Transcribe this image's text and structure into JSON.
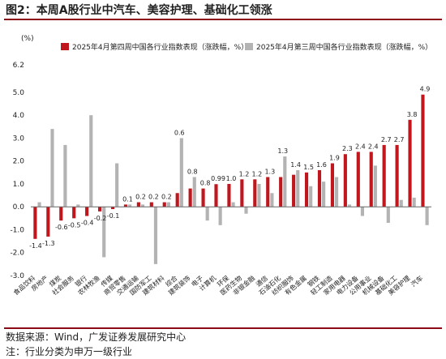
{
  "title": "图2：本周A股行业中汽车、美容护理、基础化工领涨",
  "source_note": "数据来源：Wind，广发证券发展研究中心",
  "footnote": "注：行业分类为申万一级行业",
  "colors": {
    "rule": "#8b0a16",
    "series1": "#c0161e",
    "series2": "#b3b3b3"
  },
  "chart_data": {
    "type": "bar",
    "unit_label": "(%)",
    "ylim": [
      -3.0,
      6.2
    ],
    "yticks": [
      "6.2",
      "5.0",
      "4.0",
      "3.0",
      "2.0",
      "1.0",
      "0.0",
      "-1.0",
      "-2.0",
      "-3.0"
    ],
    "ytick_values": [
      6.2,
      5.0,
      4.0,
      3.0,
      2.0,
      1.0,
      0.0,
      -1.0,
      -2.0,
      -3.0
    ],
    "grid": false,
    "legend_position": "top",
    "categories": [
      "食品饮料",
      "房地产",
      "煤炭",
      "社会服务",
      "银行",
      "农林牧渔",
      "传媒",
      "商贸零售",
      "交通运输",
      "国防军工",
      "建筑材料",
      "综合",
      "建筑装饰",
      "电子",
      "计算机",
      "环保",
      "医药生物",
      "非银金融",
      "通信",
      "石油石化",
      "纺织服饰",
      "有色金属",
      "钢铁",
      "轻工制造",
      "家用电器",
      "电力设备",
      "公用事业",
      "机械设备",
      "基础化工",
      "美容护理",
      "汽车"
    ],
    "series": [
      {
        "name": "2025年4月第四周中国各行业指数表现（涨跌幅，%）",
        "values": [
          -1.4,
          -1.3,
          -0.6,
          -0.5,
          -0.4,
          -0.2,
          -0.1,
          0.1,
          0.2,
          0.2,
          0.2,
          0.6,
          0.8,
          0.8,
          0.99,
          1.0,
          1.2,
          1.2,
          1.3,
          1.3,
          1.4,
          1.5,
          1.6,
          1.9,
          2.3,
          2.4,
          2.4,
          2.7,
          2.7,
          3.8,
          4.9
        ],
        "labels": [
          "-1.4",
          "-1.3",
          "-0.6",
          "-0.5",
          "-0.4",
          "-0.2",
          "-0.1",
          "0.1",
          "0.2",
          "0.2",
          "0.2",
          "0.6",
          "0.8",
          "0.8",
          "0.99",
          "1.0",
          "1.2",
          "1.2",
          "1.3",
          "1.3",
          "1.4",
          "1.5",
          "1.6",
          "1.9",
          "2.3",
          "2.4",
          "2.4",
          "2.7",
          "2.7",
          "3.8",
          "4.9"
        ]
      },
      {
        "name": "2025年4月第三周中国各行业指数表现（涨跌幅，%）",
        "values": [
          0.2,
          3.4,
          2.7,
          0.1,
          4.0,
          -2.2,
          1.9,
          0.1,
          0.1,
          -2.5,
          0.2,
          3.0,
          1.3,
          -0.6,
          -0.8,
          0.2,
          -0.3,
          1.0,
          0.6,
          2.2,
          1.6,
          0.9,
          1.1,
          1.3,
          0.1,
          -0.4,
          1.8,
          -0.7,
          0.3,
          0.4,
          -0.8
        ]
      }
    ]
  }
}
